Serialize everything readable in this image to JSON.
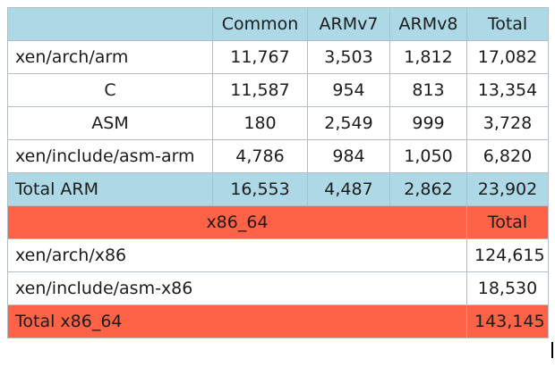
{
  "colors": {
    "arm_header": "#add8e6",
    "x86_header": "#ff6347",
    "border": "#b4bcc6",
    "text": "#1c1c1c"
  },
  "arm": {
    "header": {
      "blank": "",
      "common": "Common",
      "armv7": "ARMv7",
      "armv8": "ARMv8",
      "total": "Total"
    },
    "rows": [
      {
        "label": "xen/arch/arm",
        "common": "11,767",
        "armv7": "3,503",
        "armv8": "1,812",
        "total": "17,082"
      },
      {
        "label": "C",
        "common": "11,587",
        "armv7": "954",
        "armv8": "813",
        "total": "13,354"
      },
      {
        "label": "ASM",
        "common": "180",
        "armv7": "2,549",
        "armv8": "999",
        "total": "3,728"
      },
      {
        "label": "xen/include/asm-arm",
        "common": "4,786",
        "armv7": "984",
        "armv8": "1,050",
        "total": "6,820"
      }
    ],
    "total_row": {
      "label": "Total ARM",
      "common": "16,553",
      "armv7": "4,487",
      "armv8": "2,862",
      "total": "23,902"
    }
  },
  "x86": {
    "header": {
      "label": "x86_64",
      "total": "Total"
    },
    "rows": [
      {
        "label": "xen/arch/x86",
        "total": "124,615"
      },
      {
        "label": "xen/include/asm-x86",
        "total": "18,530"
      }
    ],
    "total_row": {
      "label": "Total x86_64",
      "total": "143,145"
    }
  }
}
